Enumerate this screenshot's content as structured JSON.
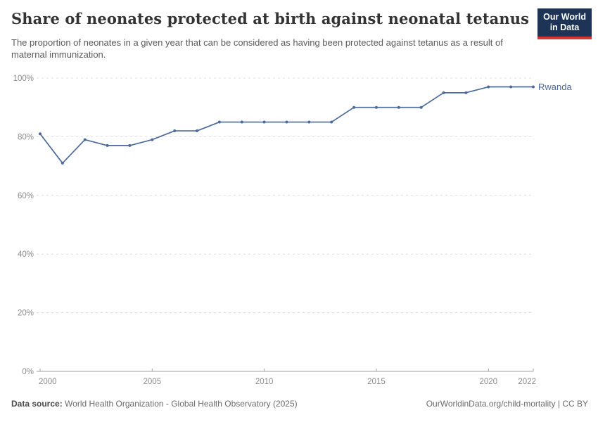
{
  "header": {
    "title": "Share of neonates protected at birth against neonatal tetanus",
    "subtitle": "The proportion of neonates in a given year that can be considered as having been protected against tetanus as a result of maternal immunization.",
    "logo": {
      "line1": "Our World",
      "line2": "in Data",
      "bg_color": "#1d3456",
      "accent_color": "#cf3b32"
    }
  },
  "chart_data": {
    "type": "line",
    "title": "Share of neonates protected at birth against neonatal tetanus",
    "x": [
      2000,
      2001,
      2002,
      2003,
      2004,
      2005,
      2006,
      2007,
      2008,
      2009,
      2010,
      2011,
      2012,
      2013,
      2014,
      2015,
      2016,
      2017,
      2018,
      2019,
      2020,
      2021,
      2022
    ],
    "series": [
      {
        "name": "Rwanda",
        "color": "#4c6a9c",
        "values": [
          81,
          71,
          79,
          77,
          77,
          79,
          82,
          82,
          85,
          85,
          85,
          85,
          85,
          85,
          90,
          90,
          90,
          90,
          95,
          95,
          97,
          97,
          97
        ]
      }
    ],
    "ylim": [
      0,
      100
    ],
    "yticks": [
      0,
      20,
      40,
      60,
      80,
      100
    ],
    "ytick_labels": [
      "0%",
      "20%",
      "40%",
      "60%",
      "80%",
      "100%"
    ],
    "xticks": [
      2000,
      2005,
      2010,
      2015,
      2020,
      2022
    ],
    "xtick_labels": [
      "2000",
      "2005",
      "2010",
      "2015",
      "2020",
      "2022"
    ],
    "grid": "horizontal-dashed",
    "legend_position": "end-of-line",
    "gridline_color": "#dcdcdc",
    "axis_color": "#a3a3a3",
    "tick_label_color": "#8c8c8c"
  },
  "footer": {
    "datasource_label": "Data source:",
    "datasource_value": " World Health Organization - Global Health Observatory (2025)",
    "link": "OurWorldinData.org/child-mortality | CC BY"
  }
}
